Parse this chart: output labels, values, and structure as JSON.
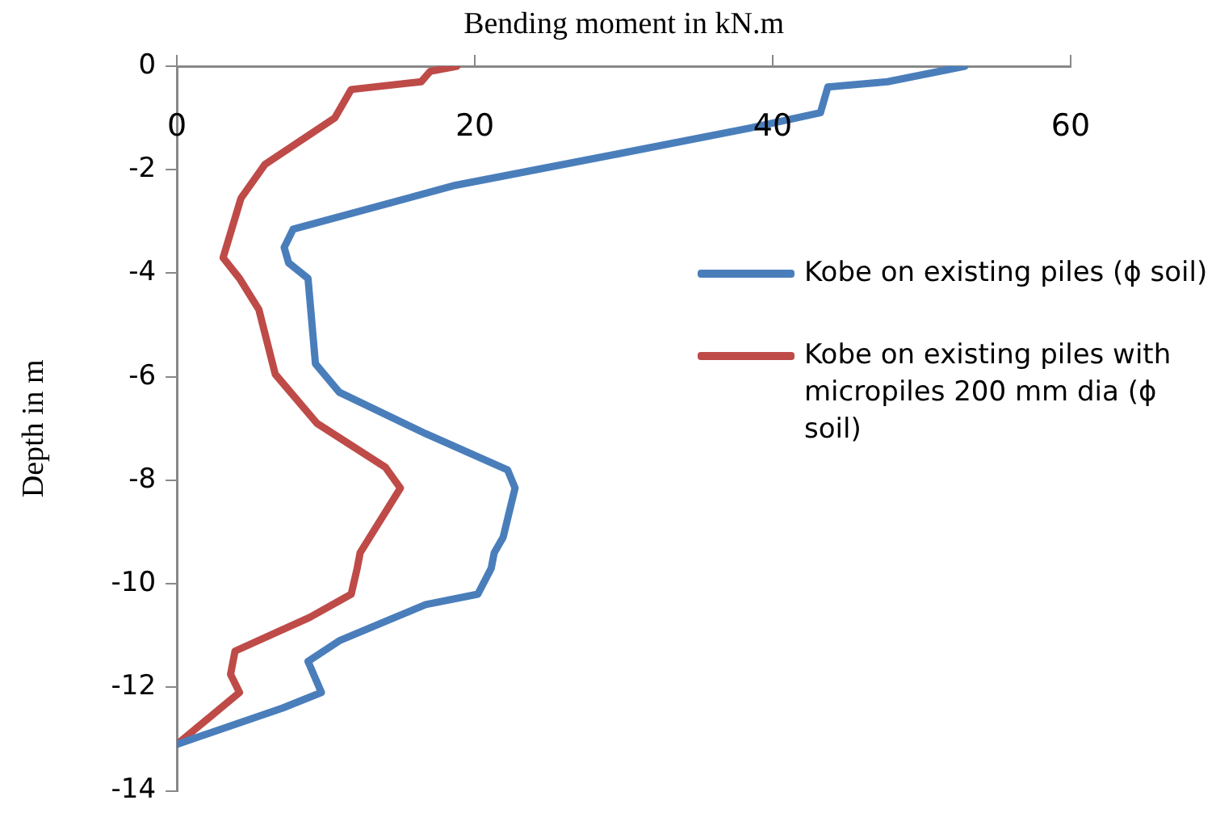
{
  "chart_data": {
    "type": "line",
    "xlabel": "Bending moment in kN.m",
    "ylabel": "Depth in m",
    "xlim": [
      0,
      60
    ],
    "xticks": [
      0,
      20,
      40,
      60
    ],
    "ylim": [
      -14,
      0
    ],
    "yticks": [
      -14,
      -12,
      -10,
      -8,
      -6,
      -4,
      -2,
      0
    ],
    "grid": false,
    "legend": "right",
    "marker": "none",
    "line_style": "solid",
    "series": [
      {
        "name": "Kobe on existing piles (ϕ soil)",
        "color": "#4a7ebb",
        "x": [
          52.9,
          47.7,
          43.7,
          43.2,
          38.4,
          29.5,
          18.7,
          7.8,
          7.2,
          7.5,
          8.8,
          9.3,
          10.9,
          16.7,
          22.2,
          22.7,
          21.9,
          21.3,
          21.1,
          20.2,
          16.7,
          10.9,
          8.8,
          9.7,
          7.1,
          0
        ],
        "values": [
          0,
          -0.3,
          -0.4,
          -0.9,
          -1.2,
          -1.7,
          -2.3,
          -3.15,
          -3.5,
          -3.8,
          -4.1,
          -5.75,
          -6.3,
          -7.1,
          -7.8,
          -8.15,
          -9.1,
          -9.4,
          -9.7,
          -10.2,
          -10.4,
          -11.1,
          -11.5,
          -12.1,
          -12.4,
          -13.1
        ]
      },
      {
        "name": "Kobe on existing piles with micropiles 200 mm dia (ϕ soil)",
        "color": "#be4b48",
        "x": [
          18.8,
          17,
          16.4,
          11.7,
          11.1,
          10.6,
          5.9,
          4.3,
          3.1,
          4.2,
          5.5,
          6.6,
          9.4,
          14,
          15,
          13.6,
          12.3,
          12.1,
          11.7,
          8.9,
          3.9,
          3.6,
          4.2,
          0
        ],
        "values": [
          0,
          -0.1,
          -0.3,
          -0.45,
          -0.75,
          -1.0,
          -1.9,
          -2.55,
          -3.7,
          -4.1,
          -4.7,
          -5.95,
          -6.9,
          -7.75,
          -8.15,
          -8.8,
          -9.4,
          -9.7,
          -10.2,
          -10.65,
          -11.3,
          -11.75,
          -12.1,
          -13.1
        ]
      }
    ]
  }
}
